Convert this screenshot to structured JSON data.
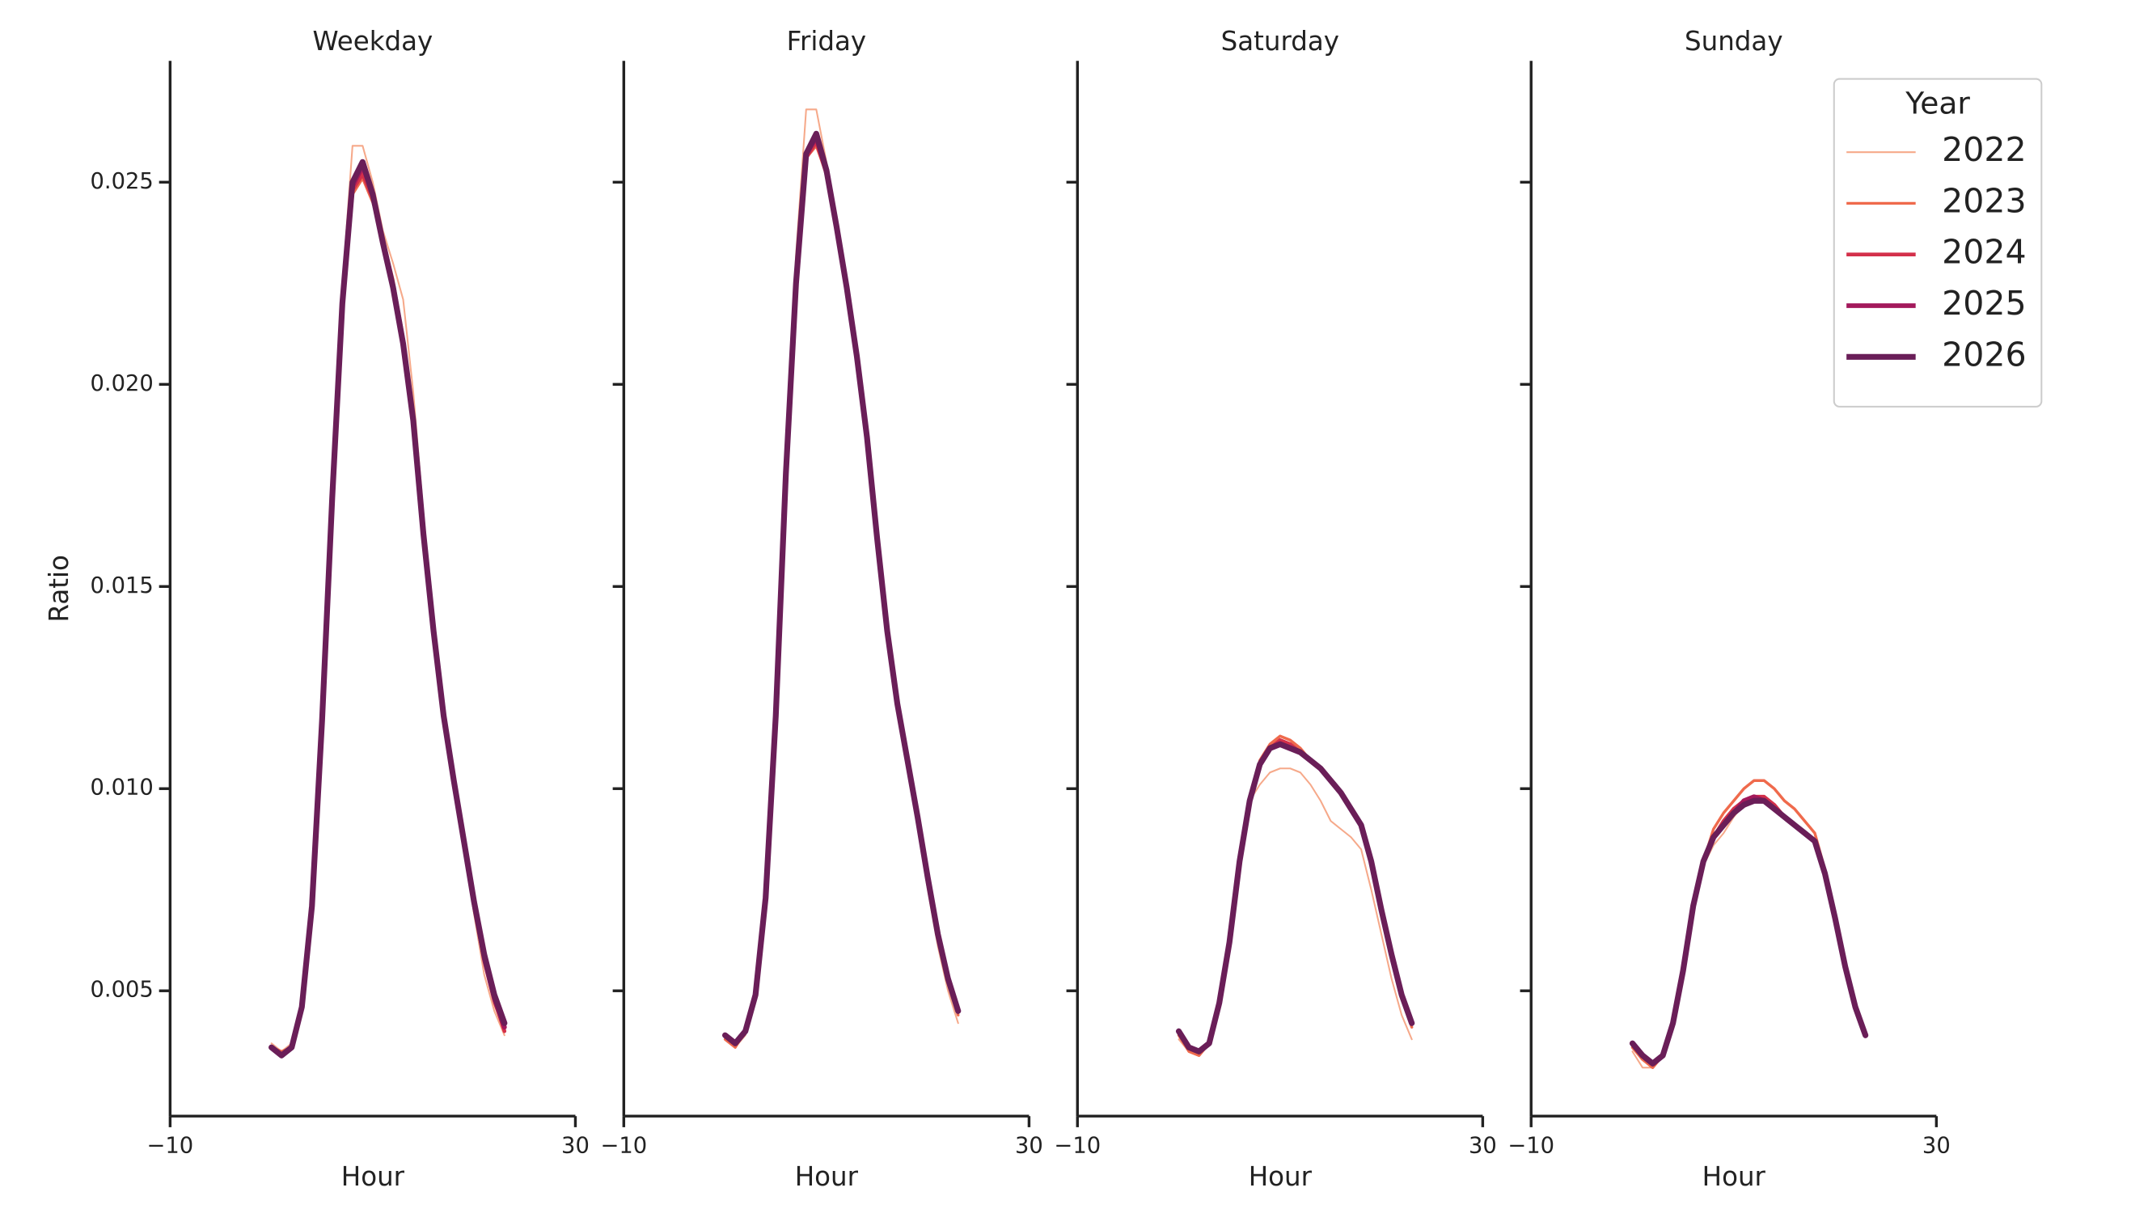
{
  "chart_data": [
    {
      "type": "line",
      "title": "Weekday",
      "xlabel": "Hour",
      "ylabel": "Ratio",
      "x": [
        0,
        1,
        2,
        3,
        4,
        5,
        6,
        7,
        8,
        9,
        10,
        11,
        12,
        13,
        14,
        15,
        16,
        17,
        18,
        19,
        20,
        21,
        22,
        23
      ],
      "xlim": [
        -10,
        30
      ],
      "xticks": [
        {
          "value": -10,
          "label": "−10"
        },
        30
      ],
      "ylim": [
        0.0019,
        0.028
      ],
      "yticks": [
        0.005,
        {
          "value": 0.01,
          "label": "0.010"
        },
        0.015,
        {
          "value": 0.02,
          "label": "0.020"
        },
        0.025
      ],
      "series": [
        {
          "name": "2022",
          "color": "#f6a98a",
          "linewidth": 1.2,
          "values": [
            0.0037,
            0.0035,
            0.0037,
            0.0047,
            0.0072,
            0.0118,
            0.0175,
            0.0224,
            0.0259,
            0.0259,
            0.025,
            0.0238,
            0.023,
            0.0221,
            0.0198,
            0.0168,
            0.0141,
            0.0119,
            0.0102,
            0.0086,
            0.0069,
            0.0054,
            0.0045,
            0.0039
          ]
        },
        {
          "name": "2023",
          "color": "#ef6a4c",
          "linewidth": 2,
          "values": [
            0.0036,
            0.0035,
            0.0036,
            0.0046,
            0.0071,
            0.0117,
            0.0173,
            0.022,
            0.0247,
            0.0251,
            0.0245,
            0.0236,
            0.0226,
            0.0212,
            0.0193,
            0.0165,
            0.014,
            0.0118,
            0.0101,
            0.0086,
            0.007,
            0.0057,
            0.0047,
            0.004
          ]
        },
        {
          "name": "2024",
          "color": "#d3304a",
          "linewidth": 2.7,
          "values": [
            0.0036,
            0.0034,
            0.0036,
            0.0046,
            0.0071,
            0.0117,
            0.0172,
            0.0219,
            0.0248,
            0.0252,
            0.0246,
            0.0236,
            0.0225,
            0.0211,
            0.0192,
            0.0164,
            0.0139,
            0.0118,
            0.0102,
            0.0087,
            0.0071,
            0.0058,
            0.0048,
            0.004
          ]
        },
        {
          "name": "2025",
          "color": "#a3195b",
          "linewidth": 3.4,
          "values": [
            0.0036,
            0.0034,
            0.0036,
            0.0046,
            0.0071,
            0.0117,
            0.0172,
            0.022,
            0.0249,
            0.0254,
            0.0247,
            0.0235,
            0.0224,
            0.021,
            0.0191,
            0.0163,
            0.0139,
            0.0118,
            0.0102,
            0.0087,
            0.0072,
            0.0058,
            0.0048,
            0.0041
          ]
        },
        {
          "name": "2026",
          "color": "#6a1e58",
          "linewidth": 4.2,
          "values": [
            0.0036,
            0.0034,
            0.0036,
            0.0046,
            0.0071,
            0.0117,
            0.0172,
            0.022,
            0.025,
            0.0255,
            0.0247,
            0.0235,
            0.0224,
            0.021,
            0.0191,
            0.0163,
            0.0139,
            0.0118,
            0.0102,
            0.0087,
            0.0072,
            0.0059,
            0.0049,
            0.0042
          ]
        }
      ]
    },
    {
      "type": "line",
      "title": "Friday",
      "xlabel": "Hour",
      "x": [
        0,
        1,
        2,
        3,
        4,
        5,
        6,
        7,
        8,
        9,
        10,
        11,
        12,
        13,
        14,
        15,
        16,
        17,
        18,
        19,
        20,
        21,
        22,
        23
      ],
      "xlim": [
        -10,
        30
      ],
      "xticks": [
        {
          "value": -10,
          "label": "−10"
        },
        30
      ],
      "series": [
        {
          "name": "2022",
          "color": "#f6a98a",
          "linewidth": 1.2,
          "values": [
            0.0038,
            0.0036,
            0.0039,
            0.0049,
            0.0074,
            0.0121,
            0.0183,
            0.0232,
            0.0268,
            0.0268,
            0.0255,
            0.024,
            0.0226,
            0.0209,
            0.0187,
            0.0161,
            0.0138,
            0.012,
            0.0105,
            0.0091,
            0.0075,
            0.0061,
            0.005,
            0.0042
          ]
        },
        {
          "name": "2023",
          "color": "#ef6a4c",
          "linewidth": 2,
          "values": [
            0.0038,
            0.0036,
            0.004,
            0.0049,
            0.0073,
            0.0118,
            0.0178,
            0.0225,
            0.0256,
            0.0259,
            0.0252,
            0.0239,
            0.0225,
            0.0208,
            0.0187,
            0.0162,
            0.0139,
            0.0121,
            0.0106,
            0.0092,
            0.0077,
            0.0063,
            0.0052,
            0.0044
          ]
        },
        {
          "name": "2024",
          "color": "#d3304a",
          "linewidth": 2.7,
          "values": [
            0.0039,
            0.0037,
            0.004,
            0.0049,
            0.0073,
            0.0118,
            0.0178,
            0.0225,
            0.0256,
            0.026,
            0.0252,
            0.0239,
            0.0224,
            0.0207,
            0.0187,
            0.0162,
            0.0139,
            0.0121,
            0.0107,
            0.0093,
            0.0078,
            0.0064,
            0.0053,
            0.0045
          ]
        },
        {
          "name": "2025",
          "color": "#a3195b",
          "linewidth": 3.4,
          "values": [
            0.0039,
            0.0037,
            0.004,
            0.0049,
            0.0073,
            0.0118,
            0.0178,
            0.0225,
            0.0257,
            0.0261,
            0.0253,
            0.0239,
            0.0224,
            0.0207,
            0.0187,
            0.0162,
            0.0139,
            0.0121,
            0.0107,
            0.0093,
            0.0078,
            0.0064,
            0.0053,
            0.0045
          ]
        },
        {
          "name": "2026",
          "color": "#6a1e58",
          "linewidth": 4.2,
          "values": [
            0.0039,
            0.0037,
            0.004,
            0.0049,
            0.0073,
            0.0118,
            0.0178,
            0.0225,
            0.0257,
            0.0262,
            0.0253,
            0.0239,
            0.0224,
            0.0207,
            0.0187,
            0.0162,
            0.0139,
            0.0121,
            0.0107,
            0.0093,
            0.0078,
            0.0064,
            0.0053,
            0.0045
          ]
        }
      ]
    },
    {
      "type": "line",
      "title": "Saturday",
      "xlabel": "Hour",
      "x": [
        0,
        1,
        2,
        3,
        4,
        5,
        6,
        7,
        8,
        9,
        10,
        11,
        12,
        13,
        14,
        15,
        16,
        17,
        18,
        19,
        20,
        21,
        22,
        23
      ],
      "xlim": [
        -10,
        30
      ],
      "xticks": [
        {
          "value": -10,
          "label": "−10"
        },
        30
      ],
      "series": [
        {
          "name": "2022",
          "color": "#f6a98a",
          "linewidth": 1.2,
          "values": [
            0.0038,
            0.0035,
            0.0034,
            0.0037,
            0.0047,
            0.0062,
            0.0082,
            0.0097,
            0.0101,
            0.0104,
            0.0105,
            0.0105,
            0.0104,
            0.0101,
            0.0097,
            0.0092,
            0.009,
            0.0088,
            0.0085,
            0.0075,
            0.0064,
            0.0053,
            0.0044,
            0.0038
          ]
        },
        {
          "name": "2023",
          "color": "#ef6a4c",
          "linewidth": 2,
          "values": [
            0.0039,
            0.0035,
            0.0034,
            0.0037,
            0.0047,
            0.0062,
            0.0082,
            0.0097,
            0.0107,
            0.0111,
            0.0113,
            0.0112,
            0.011,
            0.0107,
            0.0105,
            0.0102,
            0.0099,
            0.0095,
            0.0091,
            0.0081,
            0.0069,
            0.0058,
            0.0048,
            0.0041
          ]
        },
        {
          "name": "2024",
          "color": "#d3304a",
          "linewidth": 2.7,
          "values": [
            0.004,
            0.0036,
            0.0035,
            0.0037,
            0.0047,
            0.0062,
            0.0082,
            0.0097,
            0.0106,
            0.011,
            0.0112,
            0.0111,
            0.0109,
            0.0107,
            0.0105,
            0.0102,
            0.0099,
            0.0095,
            0.0091,
            0.0082,
            0.007,
            0.0059,
            0.0049,
            0.0042
          ]
        },
        {
          "name": "2025",
          "color": "#a3195b",
          "linewidth": 3.4,
          "values": [
            0.004,
            0.0036,
            0.0035,
            0.0037,
            0.0047,
            0.0062,
            0.0082,
            0.0097,
            0.0106,
            0.011,
            0.0111,
            0.011,
            0.0109,
            0.0107,
            0.0105,
            0.0102,
            0.0099,
            0.0095,
            0.0091,
            0.0082,
            0.007,
            0.0059,
            0.0049,
            0.0042
          ]
        },
        {
          "name": "2026",
          "color": "#6a1e58",
          "linewidth": 4.2,
          "values": [
            0.004,
            0.0036,
            0.0035,
            0.0037,
            0.0047,
            0.0062,
            0.0082,
            0.0097,
            0.0106,
            0.011,
            0.0111,
            0.011,
            0.0109,
            0.0107,
            0.0105,
            0.0102,
            0.0099,
            0.0095,
            0.0091,
            0.0082,
            0.007,
            0.0059,
            0.0049,
            0.0042
          ]
        }
      ]
    },
    {
      "type": "line",
      "title": "Sunday",
      "xlabel": "Hour",
      "legend_title": "Year",
      "legend": "upper right",
      "x": [
        0,
        1,
        2,
        3,
        4,
        5,
        6,
        7,
        8,
        9,
        10,
        11,
        12,
        13,
        14,
        15,
        16,
        17,
        18,
        19,
        20,
        21,
        22,
        23
      ],
      "xlim": [
        -10,
        30
      ],
      "xticks": [
        {
          "value": -10,
          "label": "−10"
        },
        30
      ],
      "series": [
        {
          "name": "2022",
          "color": "#f6a98a",
          "linewidth": 1.2,
          "values": [
            0.0035,
            0.0031,
            0.0031,
            0.0034,
            0.0042,
            0.0055,
            0.0071,
            0.0081,
            0.0086,
            0.0089,
            0.0093,
            0.0096,
            0.0097,
            0.0098,
            0.0096,
            0.0093,
            0.0091,
            0.0089,
            0.0087,
            0.0078,
            0.0067,
            0.0055,
            0.0045,
            0.0039
          ]
        },
        {
          "name": "2023",
          "color": "#ef6a4c",
          "linewidth": 2,
          "values": [
            0.0036,
            0.0033,
            0.0031,
            0.0034,
            0.0042,
            0.0055,
            0.0071,
            0.0082,
            0.009,
            0.0094,
            0.0097,
            0.01,
            0.0102,
            0.0102,
            0.01,
            0.0097,
            0.0095,
            0.0092,
            0.0089,
            0.008,
            0.0068,
            0.0056,
            0.0046,
            0.0039
          ]
        },
        {
          "name": "2024",
          "color": "#d3304a",
          "linewidth": 2.7,
          "values": [
            0.0037,
            0.0034,
            0.0032,
            0.0034,
            0.0042,
            0.0055,
            0.0071,
            0.0082,
            0.0088,
            0.0092,
            0.0095,
            0.0097,
            0.0098,
            0.0098,
            0.0096,
            0.0093,
            0.0091,
            0.0089,
            0.0087,
            0.0079,
            0.0068,
            0.0056,
            0.0046,
            0.0039
          ]
        },
        {
          "name": "2025",
          "color": "#a3195b",
          "linewidth": 3.4,
          "values": [
            0.0037,
            0.0034,
            0.0032,
            0.0034,
            0.0042,
            0.0055,
            0.0071,
            0.0082,
            0.0088,
            0.0091,
            0.0094,
            0.0097,
            0.0098,
            0.0097,
            0.0095,
            0.0093,
            0.0091,
            0.0089,
            0.0087,
            0.0079,
            0.0068,
            0.0056,
            0.0046,
            0.0039
          ]
        },
        {
          "name": "2026",
          "color": "#6a1e58",
          "linewidth": 4.2,
          "values": [
            0.0037,
            0.0034,
            0.0032,
            0.0034,
            0.0042,
            0.0055,
            0.0071,
            0.0082,
            0.0088,
            0.0091,
            0.0094,
            0.0096,
            0.0097,
            0.0097,
            0.0095,
            0.0093,
            0.0091,
            0.0089,
            0.0087,
            0.0079,
            0.0068,
            0.0056,
            0.0046,
            0.0039
          ]
        }
      ]
    }
  ]
}
